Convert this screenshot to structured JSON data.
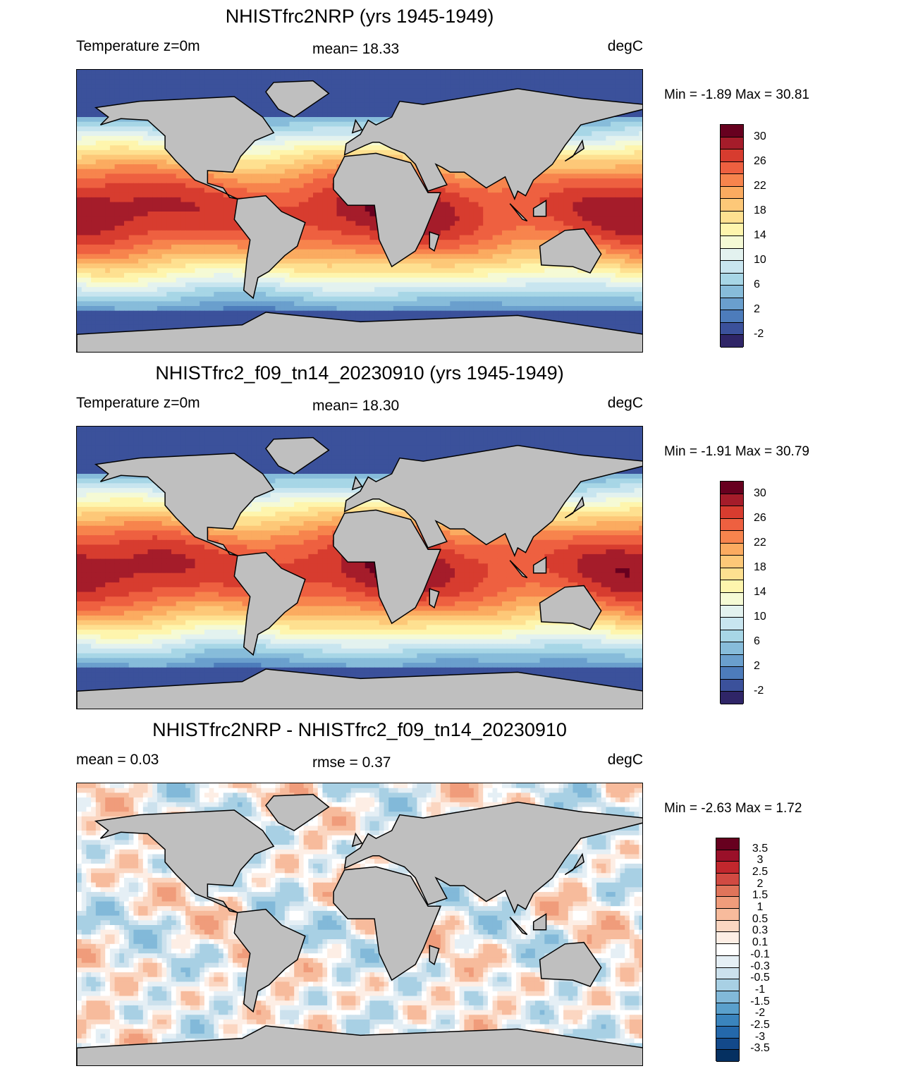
{
  "panels": [
    {
      "title": "NHISTfrc2NRP (yrs 1945-1949)",
      "left": "Temperature z=0m",
      "center": "mean=  18.33",
      "units": "degC",
      "minmax": "Min =  -1.89 Max =  30.81",
      "field": "temp",
      "seed": 0
    },
    {
      "title": "NHISTfrc2_f09_tn14_20230910 (yrs 1945-1949)",
      "left": "Temperature z=0m",
      "center": "mean=  18.30",
      "units": "degC",
      "minmax": "Min =  -1.91 Max =  30.79",
      "field": "temp",
      "seed": 1
    },
    {
      "title": "NHISTfrc2NRP - NHISTfrc2_f09_tn14_20230910",
      "left": "mean =    0.03",
      "center": "rmse =    0.37",
      "units": "degC",
      "minmax": "Min =  -2.63 Max =    1.72",
      "field": "diff",
      "seed": 2
    }
  ],
  "chart_data": [
    {
      "type": "heatmap",
      "title": "NHISTfrc2NRP (yrs 1945-1949)",
      "variable": "Temperature z=0m",
      "units": "degC",
      "mean": 18.33,
      "min": -1.89,
      "max": 30.81,
      "lon_range": [
        -180,
        180
      ],
      "lat_range": [
        -90,
        90
      ],
      "colorbar": {
        "levels": [
          -2,
          0,
          2,
          4,
          6,
          8,
          10,
          12,
          14,
          16,
          18,
          20,
          22,
          24,
          26,
          28,
          30
        ],
        "labels": [
          "30",
          "26",
          "22",
          "18",
          "14",
          "10",
          "6",
          "2",
          "-2"
        ],
        "colors": [
          "#2f2567",
          "#3b519b",
          "#4d7cbb",
          "#6a9fcd",
          "#87bcda",
          "#a7d6e6",
          "#c8e5ef",
          "#e3f2ef",
          "#f5fad5",
          "#fef5ad",
          "#fee090",
          "#fdc878",
          "#fbab60",
          "#f7844d",
          "#ee6040",
          "#d73c2f",
          "#a51c2a",
          "#67001f"
        ]
      }
    },
    {
      "type": "heatmap",
      "title": "NHISTfrc2_f09_tn14_20230910 (yrs 1945-1949)",
      "variable": "Temperature z=0m",
      "units": "degC",
      "mean": 18.3,
      "min": -1.91,
      "max": 30.79,
      "lon_range": [
        -180,
        180
      ],
      "lat_range": [
        -90,
        90
      ],
      "colorbar": {
        "levels": [
          -2,
          0,
          2,
          4,
          6,
          8,
          10,
          12,
          14,
          16,
          18,
          20,
          22,
          24,
          26,
          28,
          30
        ],
        "labels": [
          "30",
          "26",
          "22",
          "18",
          "14",
          "10",
          "6",
          "2",
          "-2"
        ]
      }
    },
    {
      "type": "heatmap",
      "title": "NHISTfrc2NRP - NHISTfrc2_f09_tn14_20230910",
      "units": "degC",
      "mean": 0.03,
      "rmse": 0.37,
      "min": -2.63,
      "max": 1.72,
      "lon_range": [
        -180,
        180
      ],
      "lat_range": [
        -90,
        90
      ],
      "colorbar": {
        "levels": [
          -3.5,
          -3,
          -2.5,
          -2,
          -1.5,
          -1,
          -0.5,
          -0.3,
          -0.1,
          0.1,
          0.3,
          0.5,
          1,
          1.5,
          2,
          2.5,
          3,
          3.5
        ],
        "labels": [
          "3.5",
          "3",
          "2.5",
          "2",
          "1.5",
          "1",
          "0.5",
          "0.3",
          "0.1",
          "-0.1",
          "-0.3",
          "-0.5",
          "-1",
          "-1.5",
          "-2",
          "-2.5",
          "-3",
          "-3.5"
        ],
        "colors": [
          "#053061",
          "#13498a",
          "#2468ab",
          "#3a84bd",
          "#5aa0cc",
          "#82b9d9",
          "#a8d0e4",
          "#cce1ed",
          "#e5eff5",
          "#ffffff",
          "#fdeee5",
          "#fbd6c1",
          "#f7bb9c",
          "#f09c7b",
          "#e0745a",
          "#d14a42",
          "#c1272d",
          "#9a1029",
          "#67001f"
        ]
      }
    }
  ],
  "colors": {
    "land": "#bfbfbf",
    "coast": "#000000"
  }
}
